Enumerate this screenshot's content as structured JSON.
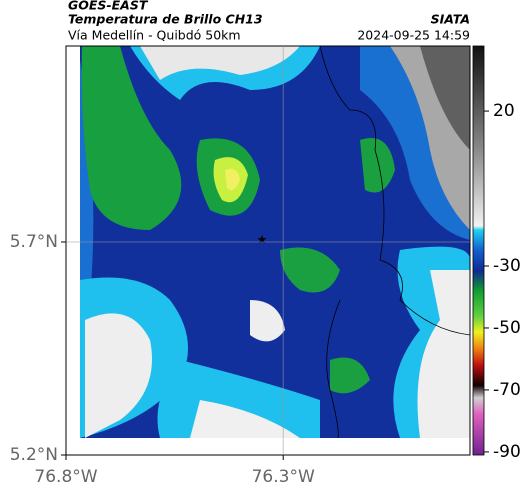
{
  "header": {
    "satellite": "GOES-EAST",
    "product": "Temperatura de Brillo CH13",
    "route": "Vía Medellín - Quibdó 50km",
    "source": "SIATA",
    "timestamp": "2024-09-25 14:59"
  },
  "map": {
    "xlim": [
      -76.8,
      -75.87
    ],
    "ylim": [
      5.2,
      6.16
    ],
    "xticks": [
      {
        "value": -76.8,
        "label": "76.8°W"
      },
      {
        "value": -76.3,
        "label": "76.3°W"
      }
    ],
    "yticks": [
      {
        "value": 5.2,
        "label": "5.2°N"
      },
      {
        "value": 5.7,
        "label": "5.7°N"
      }
    ],
    "grid": true
  },
  "colorbar": {
    "lim": [
      -91,
      41
    ],
    "ticks": [
      20,
      -30,
      -50,
      -70,
      -90
    ]
  }
}
